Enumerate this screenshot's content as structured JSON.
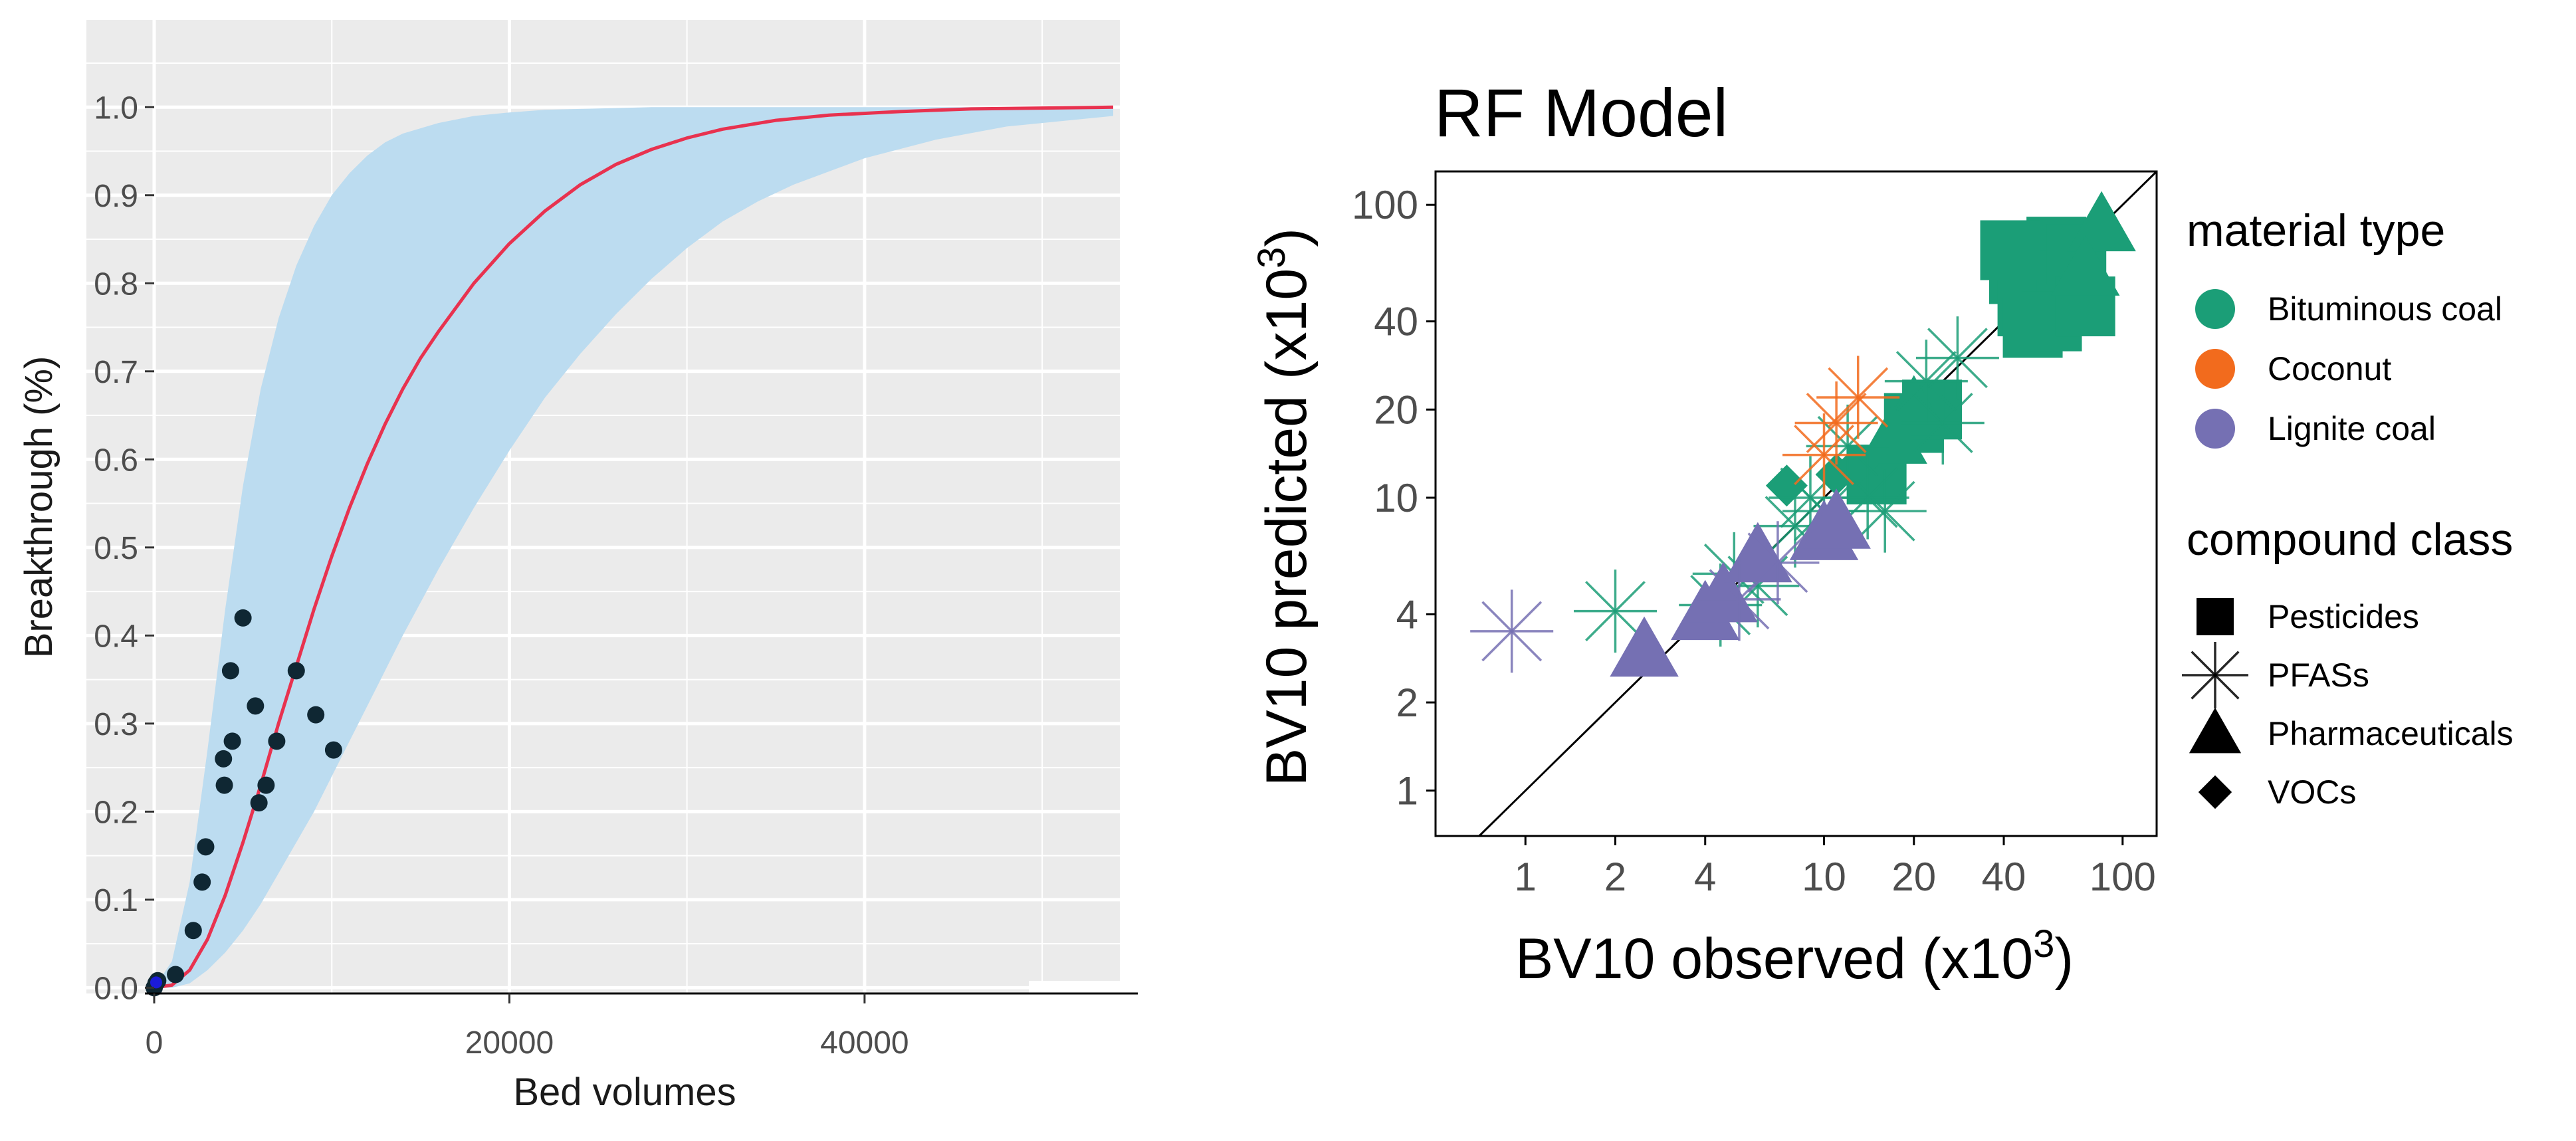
{
  "colors": {
    "panel_bg": "#ebebeb",
    "grid": "#ffffff",
    "band": "#bcdcf0",
    "curve": "#e8324f",
    "points": "#0f2733",
    "bituminous": "#1b9e77",
    "coconut": "#f26b1d",
    "lignite": "#7570b3"
  },
  "chart_data": [
    {
      "type": "line",
      "xlabel": "Bed volumes",
      "ylabel": "Breakthrough (%)",
      "xlim": [
        0,
        54000
      ],
      "ylim": [
        -0.005,
        1.05
      ],
      "xticks": [
        0,
        20000,
        40000
      ],
      "xtick_labels": [
        "0",
        "20000",
        "40000"
      ],
      "yticks": [
        0.0,
        0.1,
        0.2,
        0.3,
        0.4,
        0.5,
        0.6,
        0.7,
        0.8,
        0.9,
        1.0
      ],
      "ytick_labels": [
        "0.0",
        "0.1",
        "0.2",
        "0.3",
        "0.4",
        "0.5",
        "0.6",
        "0.7",
        "0.8",
        "0.9",
        "1.0"
      ],
      "curve": {
        "name": "Fitted breakthrough",
        "x": [
          0,
          1000,
          2000,
          3000,
          4000,
          5000,
          6000,
          7000,
          8000,
          9000,
          10000,
          11000,
          12000,
          13000,
          14000,
          15000,
          16000,
          18000,
          20000,
          22000,
          24000,
          26000,
          28000,
          30000,
          32000,
          35000,
          38000,
          42000,
          46000,
          50000,
          54000
        ],
        "y": [
          0.0,
          0.003,
          0.02,
          0.055,
          0.105,
          0.165,
          0.23,
          0.3,
          0.365,
          0.43,
          0.49,
          0.545,
          0.595,
          0.64,
          0.68,
          0.715,
          0.745,
          0.8,
          0.845,
          0.882,
          0.912,
          0.935,
          0.952,
          0.965,
          0.975,
          0.985,
          0.991,
          0.995,
          0.998,
          0.999,
          1.0
        ]
      },
      "band": {
        "name": "Uncertainty interval",
        "x": [
          0,
          1000,
          2000,
          3000,
          4000,
          5000,
          6000,
          7000,
          8000,
          9000,
          10000,
          11000,
          12000,
          13000,
          14000,
          16000,
          18000,
          20000,
          22000,
          24000,
          26000,
          28000,
          30000,
          32000,
          34000,
          36000,
          40000,
          44000,
          48000,
          54000
        ],
        "lower": [
          0.0,
          0.0,
          0.005,
          0.02,
          0.04,
          0.065,
          0.095,
          0.13,
          0.165,
          0.2,
          0.24,
          0.28,
          0.32,
          0.36,
          0.4,
          0.475,
          0.545,
          0.61,
          0.67,
          0.72,
          0.765,
          0.805,
          0.84,
          0.87,
          0.893,
          0.912,
          0.942,
          0.963,
          0.978,
          0.99
        ],
        "upper": [
          0.0,
          0.03,
          0.12,
          0.27,
          0.43,
          0.57,
          0.68,
          0.76,
          0.82,
          0.865,
          0.9,
          0.925,
          0.945,
          0.96,
          0.97,
          0.982,
          0.99,
          0.994,
          0.997,
          0.998,
          0.999,
          1.0,
          1.0,
          1.0,
          1.0,
          1.0,
          1.0,
          1.0,
          1.0,
          1.0
        ]
      },
      "points": [
        {
          "x": 0,
          "y": 0.0
        },
        {
          "x": 100,
          "y": 0.005
        },
        {
          "x": 200,
          "y": 0.008
        },
        {
          "x": 1200,
          "y": 0.015
        },
        {
          "x": 2200,
          "y": 0.065
        },
        {
          "x": 2700,
          "y": 0.12
        },
        {
          "x": 2900,
          "y": 0.16
        },
        {
          "x": 3900,
          "y": 0.26
        },
        {
          "x": 3950,
          "y": 0.23
        },
        {
          "x": 4300,
          "y": 0.36
        },
        {
          "x": 4400,
          "y": 0.28
        },
        {
          "x": 5000,
          "y": 0.42
        },
        {
          "x": 5700,
          "y": 0.32
        },
        {
          "x": 5900,
          "y": 0.21
        },
        {
          "x": 6300,
          "y": 0.23
        },
        {
          "x": 6900,
          "y": 0.28
        },
        {
          "x": 8000,
          "y": 0.36
        },
        {
          "x": 9100,
          "y": 0.31
        },
        {
          "x": 10100,
          "y": 0.27
        }
      ]
    },
    {
      "type": "scatter",
      "title": "RF Model",
      "xlabel_prefix": "BV10 observed (x10",
      "ylabel_prefix": "BV10 predicted (x10",
      "label_exponent": "3",
      "label_suffix": ")",
      "scale": "log10",
      "xlim": [
        0.5,
        130
      ],
      "ylim": [
        0.7,
        130
      ],
      "xticks": [
        1,
        2,
        4,
        10,
        20,
        40,
        100
      ],
      "xtick_labels": [
        "1",
        "2",
        "4",
        "10",
        "20",
        "40",
        "100"
      ],
      "yticks": [
        1,
        2,
        4,
        10,
        20,
        40,
        100
      ],
      "ytick_labels": [
        "1",
        "2",
        "4",
        "10",
        "20",
        "40",
        "100"
      ],
      "reference_line": "y = x",
      "legend": {
        "material_title": "material type",
        "materials": [
          {
            "key": "bituminous",
            "label": "Bituminous coal"
          },
          {
            "key": "coconut",
            "label": "Coconut"
          },
          {
            "key": "lignite",
            "label": "Lignite coal"
          }
        ],
        "class_title": "compound class",
        "classes": [
          {
            "key": "square",
            "label": "Pesticides"
          },
          {
            "key": "star",
            "label": "PFASs"
          },
          {
            "key": "triangle",
            "label": "Pharmaceuticals"
          },
          {
            "key": "diamond",
            "label": "VOCs"
          }
        ]
      },
      "points": [
        {
          "x": 50,
          "y": 65,
          "material": "bituminous",
          "class": "square"
        },
        {
          "x": 45,
          "y": 58,
          "material": "bituminous",
          "class": "square"
        },
        {
          "x": 60,
          "y": 72,
          "material": "bituminous",
          "class": "square"
        },
        {
          "x": 55,
          "y": 50,
          "material": "bituminous",
          "class": "square"
        },
        {
          "x": 48,
          "y": 45,
          "material": "bituminous",
          "class": "square"
        },
        {
          "x": 65,
          "y": 55,
          "material": "bituminous",
          "class": "square"
        },
        {
          "x": 70,
          "y": 68,
          "material": "bituminous",
          "class": "square"
        },
        {
          "x": 50,
          "y": 38,
          "material": "bituminous",
          "class": "square"
        },
        {
          "x": 58,
          "y": 40,
          "material": "bituminous",
          "class": "square"
        },
        {
          "x": 42,
          "y": 70,
          "material": "bituminous",
          "class": "square"
        },
        {
          "x": 75,
          "y": 45,
          "material": "bituminous",
          "class": "square"
        },
        {
          "x": 20,
          "y": 18,
          "material": "bituminous",
          "class": "square"
        },
        {
          "x": 23,
          "y": 20,
          "material": "bituminous",
          "class": "square"
        },
        {
          "x": 15,
          "y": 12,
          "material": "bituminous",
          "class": "square"
        },
        {
          "x": 85,
          "y": 85,
          "material": "bituminous",
          "class": "triangle"
        },
        {
          "x": 75,
          "y": 60,
          "material": "bituminous",
          "class": "triangle"
        },
        {
          "x": 20,
          "y": 20,
          "material": "bituminous",
          "class": "triangle"
        },
        {
          "x": 17,
          "y": 16,
          "material": "bituminous",
          "class": "triangle"
        },
        {
          "x": 7.5,
          "y": 11,
          "material": "bituminous",
          "class": "diamond"
        },
        {
          "x": 11,
          "y": 12,
          "material": "bituminous",
          "class": "diamond"
        },
        {
          "x": 13,
          "y": 13,
          "material": "bituminous",
          "class": "diamond"
        },
        {
          "x": 2,
          "y": 4.1,
          "material": "bituminous",
          "class": "star"
        },
        {
          "x": 5,
          "y": 5.5,
          "material": "bituminous",
          "class": "star"
        },
        {
          "x": 4.5,
          "y": 4.3,
          "material": "bituminous",
          "class": "star"
        },
        {
          "x": 6,
          "y": 5,
          "material": "bituminous",
          "class": "star"
        },
        {
          "x": 8,
          "y": 8,
          "material": "bituminous",
          "class": "star"
        },
        {
          "x": 9,
          "y": 10,
          "material": "bituminous",
          "class": "star"
        },
        {
          "x": 10,
          "y": 9,
          "material": "bituminous",
          "class": "star"
        },
        {
          "x": 12,
          "y": 15,
          "material": "bituminous",
          "class": "star"
        },
        {
          "x": 14,
          "y": 10,
          "material": "bituminous",
          "class": "star"
        },
        {
          "x": 16,
          "y": 9,
          "material": "bituminous",
          "class": "star"
        },
        {
          "x": 25,
          "y": 18,
          "material": "bituminous",
          "class": "star"
        },
        {
          "x": 28,
          "y": 30,
          "material": "bituminous",
          "class": "star"
        },
        {
          "x": 22,
          "y": 25,
          "material": "bituminous",
          "class": "star"
        },
        {
          "x": 11,
          "y": 18,
          "material": "coconut",
          "class": "star"
        },
        {
          "x": 13,
          "y": 22,
          "material": "coconut",
          "class": "star"
        },
        {
          "x": 10,
          "y": 14,
          "material": "coconut",
          "class": "star"
        },
        {
          "x": 0.9,
          "y": 3.5,
          "material": "lignite",
          "class": "star"
        },
        {
          "x": 2.5,
          "y": 3.0,
          "material": "lignite",
          "class": "triangle"
        },
        {
          "x": 4,
          "y": 4.0,
          "material": "lignite",
          "class": "triangle"
        },
        {
          "x": 4.6,
          "y": 4.6,
          "material": "lignite",
          "class": "triangle"
        },
        {
          "x": 6,
          "y": 6.3,
          "material": "lignite",
          "class": "triangle"
        },
        {
          "x": 10,
          "y": 7.5,
          "material": "lignite",
          "class": "triangle"
        },
        {
          "x": 11,
          "y": 8.2,
          "material": "lignite",
          "class": "triangle"
        },
        {
          "x": 5.2,
          "y": 4.5,
          "material": "lignite",
          "class": "star"
        },
        {
          "x": 7,
          "y": 6,
          "material": "lignite",
          "class": "star"
        }
      ]
    }
  ]
}
